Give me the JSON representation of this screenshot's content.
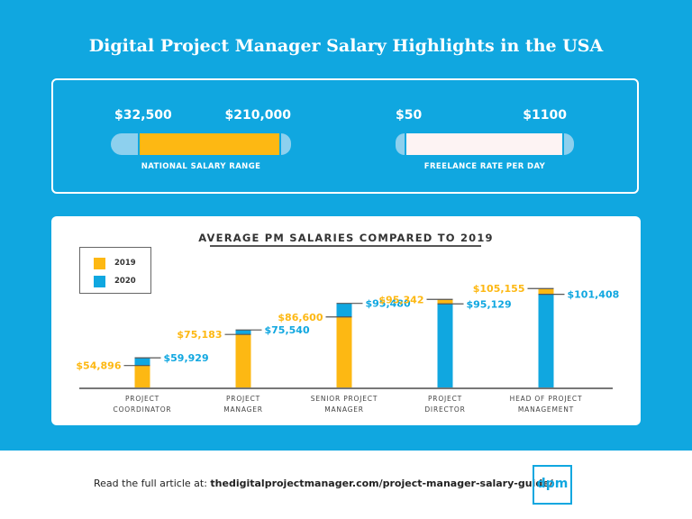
{
  "header": {
    "title": "Digital Project Manager Salary Highlights in the USA"
  },
  "colors": {
    "background_blue": "#10a7e0",
    "orange_2019": "#fdb813",
    "blue_2020": "#10a7e0",
    "pill_cap": "#8dd0ee",
    "freelance_fill": "#fdf3f3"
  },
  "ranges": [
    {
      "low": "$32,500",
      "high": "$210,000",
      "label": "NATIONAL SALARY RANGE"
    },
    {
      "low": "$50",
      "high": "$1100",
      "label": "FREELANCE RATE PER DAY"
    }
  ],
  "chart_data": {
    "type": "bar",
    "title": "AVERAGE PM SALARIES COMPARED TO 2019",
    "legend": {
      "position": "top-left",
      "entries": [
        {
          "name": "2019",
          "color": "#fdb813"
        },
        {
          "name": "2020",
          "color": "#10a7e0"
        }
      ]
    },
    "categories": [
      "PROJECT COORDINATOR",
      "PROJECT MANAGER",
      "SENIOR PROJECT MANAGER",
      "PROJECT DIRECTOR",
      "HEAD OF PROJECT MANAGEMENT"
    ],
    "category_lines": [
      [
        "PROJECT",
        "COORDINATOR"
      ],
      [
        "PROJECT",
        "MANAGER"
      ],
      [
        "SENIOR PROJECT",
        "MANAGER"
      ],
      [
        "PROJECT",
        "DIRECTOR"
      ],
      [
        "HEAD OF PROJECT",
        "MANAGEMENT"
      ]
    ],
    "series": [
      {
        "name": "2019",
        "values": [
          54896,
          75183,
          86600,
          95342,
          105155
        ],
        "labels": [
          "$54,896",
          "$75,183",
          "$86,600",
          "$95,342",
          "$105,155"
        ]
      },
      {
        "name": "2020",
        "values": [
          59929,
          75540,
          95480,
          95129,
          101408
        ],
        "labels": [
          "$59,929",
          "$75,540",
          "$95,480",
          "$95,129",
          "$101,408"
        ]
      }
    ],
    "xlabel": "",
    "ylabel": "",
    "grid": false
  },
  "footer": {
    "prefix": "Read the full article at: ",
    "link": "thedigitalprojectmanager.com/project-manager-salary-guide/",
    "logo": "dpm"
  }
}
